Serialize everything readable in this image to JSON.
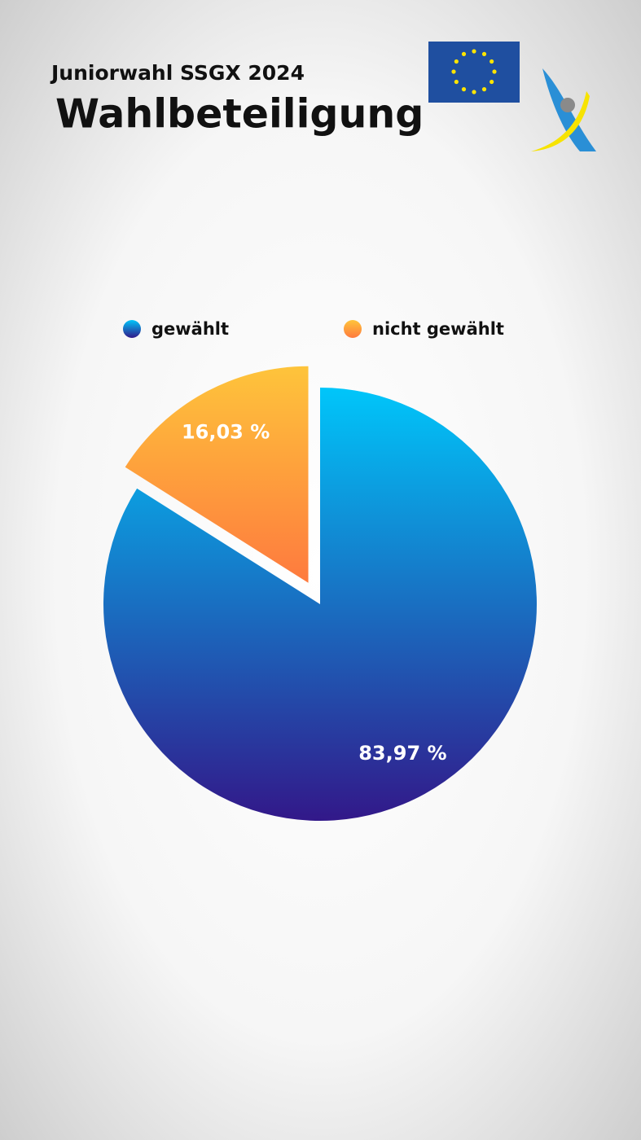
{
  "chart_data": {
    "type": "pie",
    "subtitle": "Juniorwahl SSGX 2024",
    "title": "Wahlbeteiligung",
    "categories": [
      "gewählt",
      "nicht gewählt"
    ],
    "values": [
      83.97,
      16.03
    ],
    "value_labels": [
      "83,97 %",
      "16,03 %"
    ],
    "colors": [
      [
        "#00c6fa",
        "#321889"
      ],
      [
        "#fec43b",
        "#fe7a3e"
      ]
    ],
    "explode": [
      false,
      true
    ],
    "legend": "top"
  }
}
